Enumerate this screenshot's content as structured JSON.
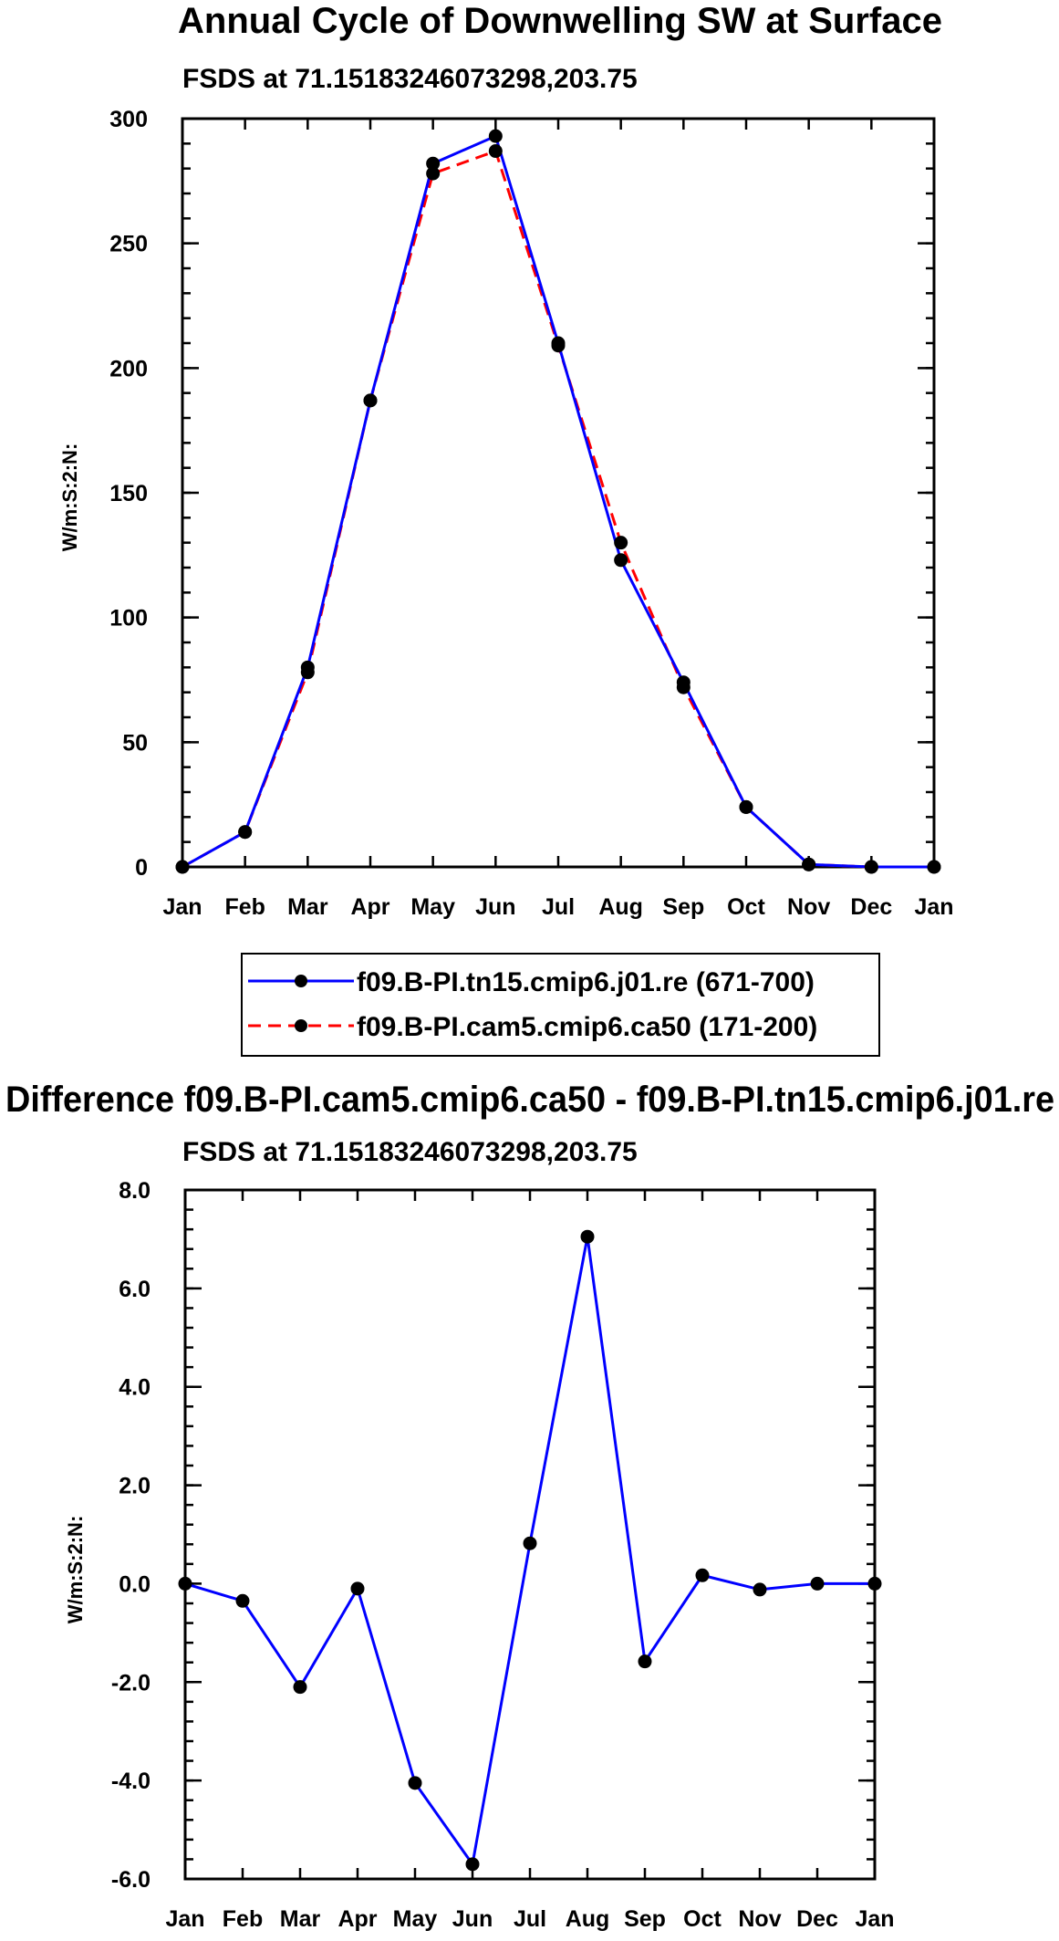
{
  "chart_data": [
    {
      "type": "line",
      "title": "Annual Cycle of Downwelling SW at Surface",
      "subtitle": "FSDS at 71.15183246073298,203.75",
      "ylabel": "W/m:S:2:N:",
      "xlabel": "",
      "categories": [
        "Jan",
        "Feb",
        "Mar",
        "Apr",
        "May",
        "Jun",
        "Jul",
        "Aug",
        "Sep",
        "Oct",
        "Nov",
        "Dec",
        "Jan"
      ],
      "ylim": [
        0,
        300
      ],
      "yticks": [
        0,
        50,
        100,
        150,
        200,
        250,
        300
      ],
      "ytick_labels": [
        "0",
        "50",
        "100",
        "150",
        "200",
        "250",
        "300"
      ],
      "series": [
        {
          "name": "f09.B-PI.tn15.cmip6.j01.re (671-700)",
          "color": "#0000ff",
          "dash": "solid",
          "values": [
            0,
            14,
            80,
            187,
            282,
            293,
            210,
            123,
            74,
            24,
            1,
            0,
            0
          ]
        },
        {
          "name": "f09.B-PI.cam5.cmip6.ca50 (171-200)",
          "color": "#ff0000",
          "dash": "dashed",
          "values": [
            0,
            14,
            78,
            187,
            278,
            287,
            209,
            130,
            72,
            24,
            1,
            0,
            0
          ]
        }
      ],
      "legend_position": "below"
    },
    {
      "type": "line",
      "title": "Difference f09.B-PI.cam5.cmip6.ca50 - f09.B-PI.tn15.cmip6.j01.re",
      "subtitle": "FSDS at 71.15183246073298,203.75",
      "ylabel": "W/m:S:2:N:",
      "xlabel": "",
      "categories": [
        "Jan",
        "Feb",
        "Mar",
        "Apr",
        "May",
        "Jun",
        "Jul",
        "Aug",
        "Sep",
        "Oct",
        "Nov",
        "Dec",
        "Jan"
      ],
      "ylim": [
        -6,
        8
      ],
      "yticks": [
        -6,
        -4,
        -2,
        0,
        2,
        4,
        6,
        8
      ],
      "ytick_labels": [
        "-6.0",
        "-4.0",
        "-2.0",
        "0.0",
        "2.0",
        "4.0",
        "6.0",
        "8.0"
      ],
      "series": [
        {
          "name": "difference",
          "color": "#0000ff",
          "dash": "solid",
          "values": [
            0,
            -0.35,
            -2.1,
            -0.1,
            -4.05,
            -5.7,
            0.82,
            7.05,
            -1.58,
            0.17,
            -0.12,
            0,
            0
          ]
        }
      ]
    }
  ]
}
